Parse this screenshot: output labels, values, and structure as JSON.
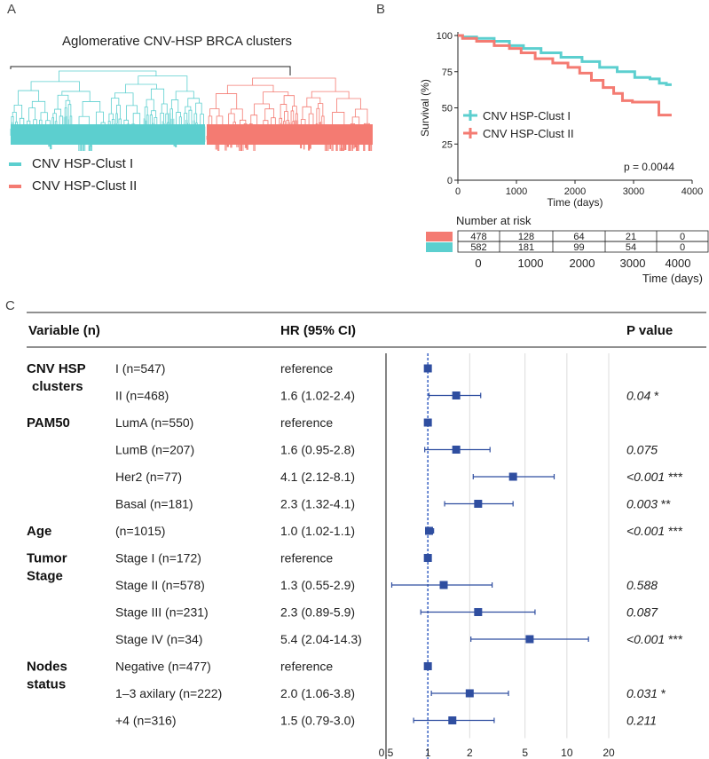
{
  "panels": {
    "a": "A",
    "b": "B",
    "c": "C"
  },
  "colors": {
    "clust1": "#5ccfcf",
    "clust2": "#f47b72",
    "forest": "#2f4ea0",
    "dashed": "#3b64c4"
  },
  "dendrogram": {
    "title": "Aglomerative CNV-HSP BRCA clusters",
    "legend": [
      {
        "label": "CNV HSP-Clust I",
        "color": "#5ccfcf"
      },
      {
        "label": "CNV HSP-Clust II",
        "color": "#f47b72"
      }
    ]
  },
  "chart_data": [
    {
      "type": "line",
      "title": "",
      "xlabel": "Time (days)",
      "ylabel": "Survival (%)",
      "xlim": [
        0,
        4000
      ],
      "ylim": [
        0,
        100
      ],
      "xticks": [
        "0",
        "1000",
        "2000",
        "3000",
        "4000"
      ],
      "yticks": [
        "0",
        "25",
        "50",
        "75",
        "100"
      ],
      "annotation": "p = 0.0044",
      "series": [
        {
          "name": "CNV HSP-Clust I",
          "color": "#5ccfcf",
          "x": [
            0,
            200,
            500,
            800,
            1000,
            1300,
            1600,
            2000,
            2300,
            2600,
            2900,
            3200,
            3400,
            3500,
            3650
          ],
          "y": [
            100,
            99,
            98,
            96,
            93,
            91,
            88,
            85,
            82,
            78,
            75,
            71,
            70,
            67,
            66
          ]
        },
        {
          "name": "CNV HSP-Clust II",
          "color": "#f47b72",
          "x": [
            0,
            200,
            500,
            800,
            1000,
            1200,
            1500,
            1800,
            2000,
            2200,
            2400,
            2600,
            2750,
            2900,
            3100,
            3400,
            3480,
            3650
          ],
          "y": [
            100,
            98,
            96,
            93,
            91,
            88,
            84,
            81,
            78,
            74,
            69,
            64,
            60,
            55,
            54,
            54,
            45,
            45
          ]
        }
      ],
      "risk_table": {
        "title": "Number at risk",
        "xlabel": "Time (days)",
        "times": [
          "0",
          "1000",
          "2000",
          "3000",
          "4000"
        ],
        "rows": [
          {
            "color": "#f47b72",
            "values": [
              "478",
              "128",
              "64",
              "21",
              "0"
            ]
          },
          {
            "color": "#5ccfcf",
            "values": [
              "582",
              "181",
              "99",
              "54",
              "0"
            ]
          }
        ]
      }
    },
    {
      "type": "scatter",
      "subtype": "forest",
      "headers": {
        "variable": "Variable (n)",
        "hr": "HR (95% CI)",
        "p": "P value"
      },
      "x_scale": "log",
      "xlim": [
        0.5,
        20
      ],
      "xticks": [
        0.5,
        1,
        2,
        5,
        10,
        20
      ],
      "xtick_labels": [
        "0.5",
        "1",
        "2",
        "5",
        "10",
        "20"
      ],
      "groups": [
        {
          "name": "CNV HSP\nclusters",
          "lines": [
            "CNV HSP",
            "clusters"
          ],
          "first_row": 0
        },
        {
          "name": "PAM50",
          "lines": [
            "PAM50"
          ],
          "first_row": 2
        },
        {
          "name": "Age",
          "lines": [
            "Age"
          ],
          "first_row": 6
        },
        {
          "name": "Tumor Stage",
          "lines": [
            "Tumor",
            "Stage"
          ],
          "first_row": 7
        },
        {
          "name": "Nodes status",
          "lines": [
            "Nodes",
            "status"
          ],
          "first_row": 11
        }
      ],
      "rows": [
        {
          "label": "I  (n=547)",
          "hr_text": "reference",
          "hr": 1,
          "lo": null,
          "hi": null,
          "p": "",
          "sig": ""
        },
        {
          "label": "II (n=468)",
          "hr_text": "1.6 (1.02-2.4)",
          "hr": 1.6,
          "lo": 1.02,
          "hi": 2.4,
          "p": "0.04",
          "sig": "*"
        },
        {
          "label": "LumA (n=550)",
          "hr_text": "reference",
          "hr": 1,
          "lo": null,
          "hi": null,
          "p": "",
          "sig": ""
        },
        {
          "label": "LumB (n=207)",
          "hr_text": "1.6  (0.95-2.8)",
          "hr": 1.6,
          "lo": 0.95,
          "hi": 2.8,
          "p": "0.075",
          "sig": ""
        },
        {
          "label": "Her2 (n=77)",
          "hr_text": "4.1 (2.12-8.1)",
          "hr": 4.1,
          "lo": 2.12,
          "hi": 8.1,
          "p": "<0.001",
          "sig": "***"
        },
        {
          "label": "Basal (n=181)",
          "hr_text": "2.3 (1.32-4.1)",
          "hr": 2.3,
          "lo": 1.32,
          "hi": 4.1,
          "p": "0.003",
          "sig": "**"
        },
        {
          "label": "(n=1015)",
          "hr_text": "1.0 (1.02-1.1)",
          "hr": 1.02,
          "lo": 1.02,
          "hi": 1.1,
          "p": "<0.001",
          "sig": "***"
        },
        {
          "label": "Stage I (n=172)",
          "hr_text": "reference",
          "hr": 1,
          "lo": null,
          "hi": null,
          "p": "",
          "sig": ""
        },
        {
          "label": "Stage II (n=578)",
          "hr_text": "1.3 (0.55-2.9)",
          "hr": 1.3,
          "lo": 0.55,
          "hi": 2.9,
          "p": "0.588",
          "sig": ""
        },
        {
          "label": "Stage III (n=231)",
          "hr_text": "2.3 (0.89-5.9)",
          "hr": 2.3,
          "lo": 0.89,
          "hi": 5.9,
          "p": "0.087",
          "sig": ""
        },
        {
          "label": "Stage IV (n=34)",
          "hr_text": "5.4 (2.04-14.3)",
          "hr": 5.4,
          "lo": 2.04,
          "hi": 14.3,
          "p": "<0.001",
          "sig": "***"
        },
        {
          "label": "Negative  (n=477)",
          "hr_text": "reference",
          "hr": 1,
          "lo": null,
          "hi": null,
          "p": "",
          "sig": ""
        },
        {
          "label": "1–3 axilary (n=222)",
          "hr_text": "2.0 (1.06-3.8)",
          "hr": 2.0,
          "lo": 1.06,
          "hi": 3.8,
          "p": "0.031",
          "sig": "*"
        },
        {
          "label": "+4 (n=316)",
          "hr_text": "1.5 (0.79-3.0)",
          "hr": 1.5,
          "lo": 0.79,
          "hi": 3.0,
          "p": "0.211",
          "sig": ""
        }
      ]
    }
  ]
}
